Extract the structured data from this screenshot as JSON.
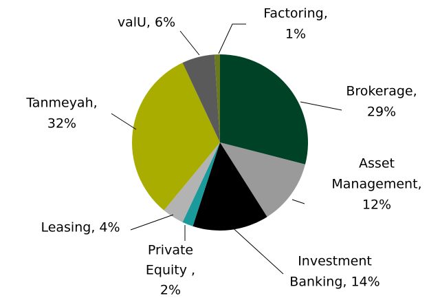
{
  "chart_data": {
    "type": "pie",
    "data_labels": [
      [
        "Brokerage,",
        "29%"
      ],
      [
        "Asset",
        "Management,",
        "12%"
      ],
      [
        "Investment",
        "Banking, 14%"
      ],
      [
        "Private",
        "Equity ,",
        "2%"
      ],
      [
        "Leasing, 4%"
      ],
      [
        "Tanmeyah,",
        "32%"
      ],
      [
        "valU, 6%"
      ],
      [
        "Factoring,",
        "1%"
      ]
    ],
    "values": [
      29,
      12,
      14,
      2,
      4,
      32,
      6,
      1
    ],
    "colors": [
      "#004225",
      "#9a9a9a",
      "#000000",
      "#1a9a9a",
      "#b3b3b3",
      "#a8ad00",
      "#5a5a5a",
      "#6b7a1e"
    ]
  }
}
